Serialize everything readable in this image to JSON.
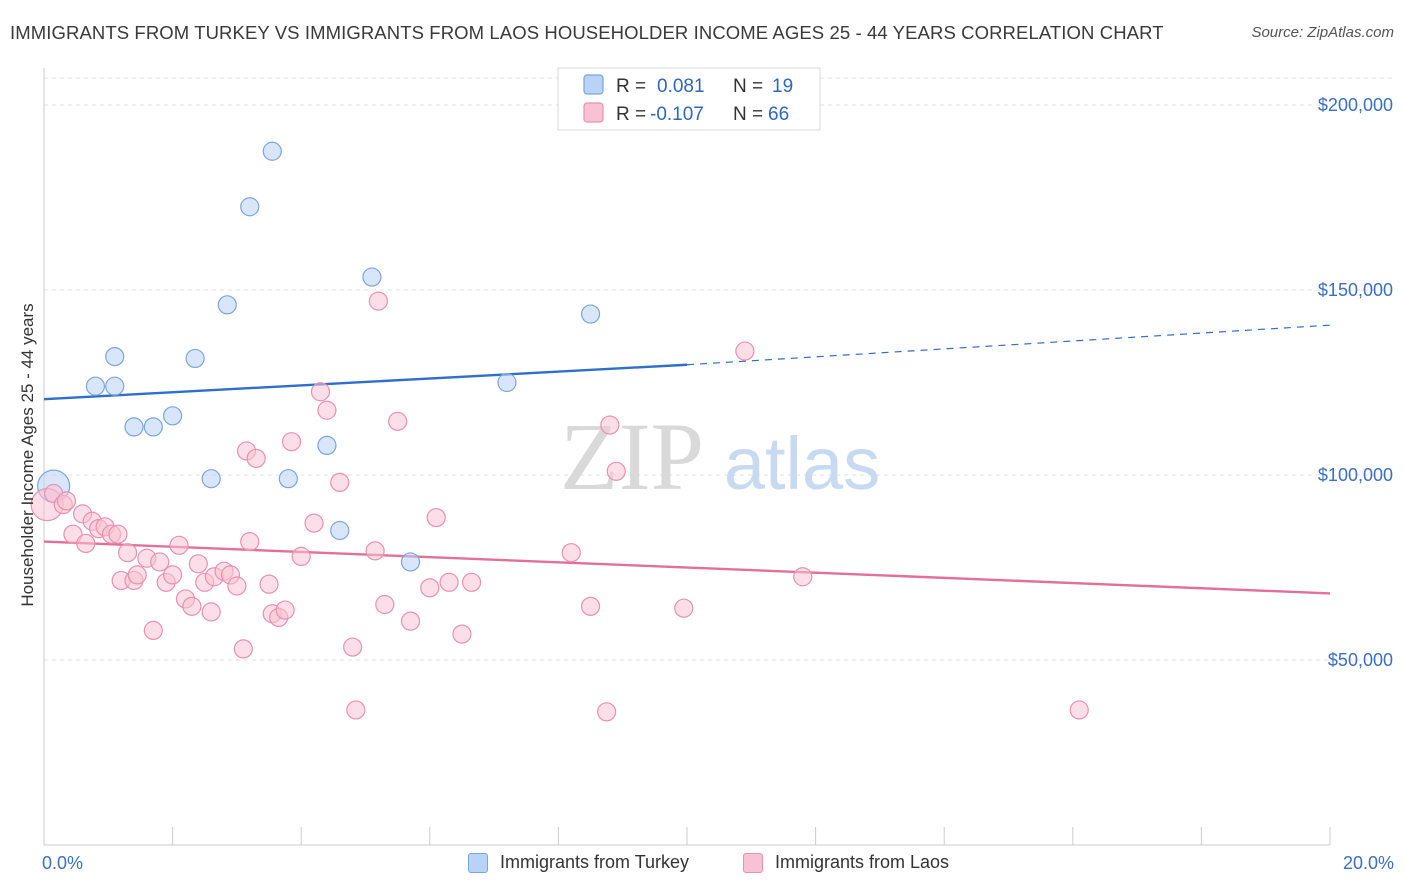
{
  "title": "IMMIGRANTS FROM TURKEY VS IMMIGRANTS FROM LAOS HOUSEHOLDER INCOME AGES 25 - 44 YEARS CORRELATION CHART",
  "source": "Source: ZipAtlas.com",
  "watermark": {
    "zip": "ZIP",
    "atlas": "atlas"
  },
  "legend": {
    "r_label": "R =",
    "n_label": "N =",
    "turkey": {
      "r": "0.081",
      "n": "19"
    },
    "laos": {
      "r": "-0.107",
      "n": "66"
    }
  },
  "colors": {
    "turkey_fill": "#b9d2f5",
    "turkey_stroke": "#7aa6e0",
    "turkey_line": "#2e6fcc",
    "laos_fill": "#f7c3d4",
    "laos_stroke": "#e991af",
    "laos_line": "#e2709a",
    "tick_text": "#3b6fc4"
  },
  "chart_data": {
    "type": "scatter",
    "xlabel": "",
    "ylabel": "Householder Income Ages 25 - 44 years",
    "xlim": [
      0,
      20
    ],
    "ylim": [
      0,
      210000
    ],
    "x_tick_labels": [
      "0.0%",
      "20.0%"
    ],
    "y_ticks": [
      {
        "value": 50000,
        "label": "$50,000"
      },
      {
        "value": 100000,
        "label": "$100,000"
      },
      {
        "value": 150000,
        "label": "$150,000"
      },
      {
        "value": 200000,
        "label": "$200,000"
      }
    ],
    "grid": true,
    "legend_position": "top-center",
    "series": [
      {
        "name": "Immigrants from Turkey",
        "color_key": "turkey",
        "trend": {
          "x0": 0,
          "y0": 120500,
          "x1": 10,
          "y1": 129800,
          "dashed_to_x": 20,
          "dashed_to_y": 140500
        },
        "points": [
          [
            0.15,
            97000,
            "large"
          ],
          [
            0.8,
            124000
          ],
          [
            1.1,
            124000
          ],
          [
            1.1,
            132000
          ],
          [
            1.4,
            113000
          ],
          [
            1.7,
            113000
          ],
          [
            2.0,
            116000
          ],
          [
            2.35,
            131500
          ],
          [
            2.6,
            99000
          ],
          [
            2.85,
            146000
          ],
          [
            3.2,
            172500
          ],
          [
            3.55,
            187500
          ],
          [
            3.8,
            99000
          ],
          [
            4.4,
            108000
          ],
          [
            4.6,
            85000
          ],
          [
            5.1,
            153500
          ],
          [
            5.7,
            76500
          ],
          [
            7.2,
            125000
          ],
          [
            8.5,
            143500
          ]
        ]
      },
      {
        "name": "Immigrants from Laos",
        "color_key": "laos",
        "trend": {
          "x0": 0,
          "y0": 82000,
          "x1": 20,
          "y1": 68000
        },
        "points": [
          [
            0.05,
            92000,
            "large"
          ],
          [
            0.15,
            95000
          ],
          [
            0.3,
            92000
          ],
          [
            0.35,
            93000
          ],
          [
            0.45,
            84000
          ],
          [
            0.6,
            89500
          ],
          [
            0.65,
            81500
          ],
          [
            0.75,
            87500
          ],
          [
            0.85,
            85500
          ],
          [
            0.95,
            86000
          ],
          [
            1.05,
            84000
          ],
          [
            1.15,
            84000
          ],
          [
            1.2,
            71500
          ],
          [
            1.3,
            79000
          ],
          [
            1.4,
            71500
          ],
          [
            1.45,
            73000
          ],
          [
            1.6,
            77500
          ],
          [
            1.7,
            58000
          ],
          [
            1.8,
            76500
          ],
          [
            1.9,
            71000
          ],
          [
            2.0,
            73000
          ],
          [
            2.1,
            81000
          ],
          [
            2.2,
            66500
          ],
          [
            2.3,
            64500
          ],
          [
            2.4,
            76000
          ],
          [
            2.5,
            71000
          ],
          [
            2.6,
            63000
          ],
          [
            2.65,
            72500
          ],
          [
            2.8,
            74000
          ],
          [
            2.9,
            73000
          ],
          [
            3.0,
            70000
          ],
          [
            3.1,
            53000
          ],
          [
            3.15,
            106500
          ],
          [
            3.2,
            82000
          ],
          [
            3.3,
            104500
          ],
          [
            3.5,
            70500
          ],
          [
            3.55,
            62500
          ],
          [
            3.65,
            61500
          ],
          [
            3.75,
            63500
          ],
          [
            3.85,
            109000
          ],
          [
            4.0,
            78000
          ],
          [
            4.2,
            87000
          ],
          [
            4.3,
            122500
          ],
          [
            4.4,
            117500
          ],
          [
            4.6,
            98000
          ],
          [
            4.8,
            53500
          ],
          [
            4.85,
            36500
          ],
          [
            5.15,
            79500
          ],
          [
            5.2,
            147000
          ],
          [
            5.3,
            65000
          ],
          [
            5.5,
            114500
          ],
          [
            5.7,
            60500
          ],
          [
            6.0,
            69500
          ],
          [
            6.1,
            88500
          ],
          [
            6.3,
            71000
          ],
          [
            6.5,
            57000
          ],
          [
            6.65,
            71000
          ],
          [
            8.2,
            79000
          ],
          [
            8.5,
            64500
          ],
          [
            8.75,
            36000
          ],
          [
            8.8,
            113500
          ],
          [
            8.9,
            101000
          ],
          [
            9.95,
            64000
          ],
          [
            10.9,
            133500
          ],
          [
            11.8,
            72500
          ],
          [
            16.1,
            36500
          ]
        ]
      }
    ]
  }
}
